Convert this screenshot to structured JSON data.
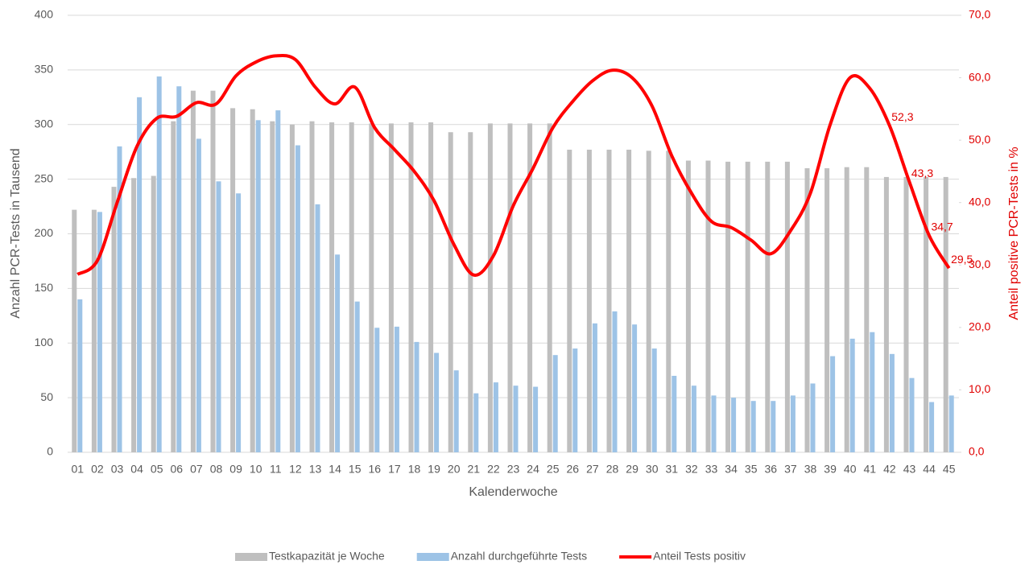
{
  "chart_data": {
    "type": "bar-line",
    "x_label": "Kalenderwoche",
    "y_label": "Anzahl PCR-Tests in Tausend",
    "y2_label": "Anteil positive PCR-Tests in %",
    "categories": [
      "01",
      "02",
      "03",
      "04",
      "05",
      "06",
      "07",
      "08",
      "09",
      "10",
      "11",
      "12",
      "13",
      "14",
      "15",
      "16",
      "17",
      "18",
      "19",
      "20",
      "21",
      "22",
      "23",
      "24",
      "25",
      "26",
      "27",
      "28",
      "29",
      "30",
      "31",
      "32",
      "33",
      "34",
      "35",
      "36",
      "37",
      "38",
      "39",
      "40",
      "41",
      "42",
      "43",
      "44",
      "45"
    ],
    "series": [
      {
        "name": "Testkapazität je Woche",
        "type": "bar",
        "color": "#bfbfbf",
        "values": [
          222,
          222,
          243,
          251,
          253,
          303,
          331,
          331,
          315,
          314,
          303,
          300,
          303,
          302,
          302,
          301,
          301,
          302,
          302,
          293,
          293,
          301,
          301,
          301,
          301,
          277,
          277,
          277,
          277,
          276,
          276,
          267,
          267,
          266,
          266,
          266,
          266,
          260,
          260,
          261,
          261,
          252,
          252,
          252,
          252
        ]
      },
      {
        "name": "Anzahl durchgeführte Tests",
        "type": "bar",
        "color": "#9dc3e6",
        "values": [
          140,
          220,
          280,
          325,
          344,
          335,
          287,
          248,
          237,
          304,
          313,
          281,
          227,
          181,
          138,
          114,
          115,
          101,
          91,
          75,
          54,
          64,
          61,
          60,
          89,
          95,
          118,
          129,
          117,
          95,
          70,
          61,
          52,
          50,
          47,
          47,
          52,
          63,
          88,
          104,
          110,
          90,
          68,
          46,
          52
        ]
      },
      {
        "name": "Anteil Tests positiv",
        "type": "line",
        "axis": "y2",
        "color": "#ff0000",
        "values": [
          28.5,
          30.7,
          40,
          49,
          53.5,
          53.8,
          56,
          55.8,
          60.3,
          62.5,
          63.5,
          62.9,
          58.5,
          55.8,
          58.5,
          52,
          48.5,
          45,
          40.3,
          33.3,
          28.4,
          31.5,
          39.5,
          45.5,
          52,
          56.2,
          59.5,
          61.2,
          60,
          55.5,
          47.5,
          41.5,
          37,
          36,
          34,
          31.8,
          35.5,
          41.5,
          52.5,
          60,
          58.3,
          52.3,
          43.3,
          34.7,
          29.5
        ],
        "value_labels": [
          null,
          null,
          null,
          null,
          null,
          null,
          null,
          null,
          null,
          null,
          null,
          null,
          null,
          null,
          null,
          null,
          null,
          null,
          null,
          null,
          null,
          null,
          null,
          null,
          null,
          null,
          null,
          null,
          null,
          null,
          null,
          null,
          null,
          null,
          null,
          null,
          null,
          null,
          null,
          null,
          null,
          "52,3",
          "43,3",
          "34,7",
          "29,5"
        ]
      }
    ],
    "ylim": [
      0,
      400
    ],
    "yticks": [
      0,
      50,
      100,
      150,
      200,
      250,
      300,
      350,
      400
    ],
    "y2lim": [
      0,
      70
    ],
    "y2ticks": [
      {
        "value": 0,
        "label": "0,0"
      },
      {
        "value": 10,
        "label": "10,0"
      },
      {
        "value": 20,
        "label": "20,0"
      },
      {
        "value": 30,
        "label": "30,0"
      },
      {
        "value": 40,
        "label": "40,0"
      },
      {
        "value": 50,
        "label": "50,0"
      },
      {
        "value": 60,
        "label": "60,0"
      },
      {
        "value": 70,
        "label": "70,0"
      }
    ],
    "grid": true,
    "legend": "bottom"
  }
}
